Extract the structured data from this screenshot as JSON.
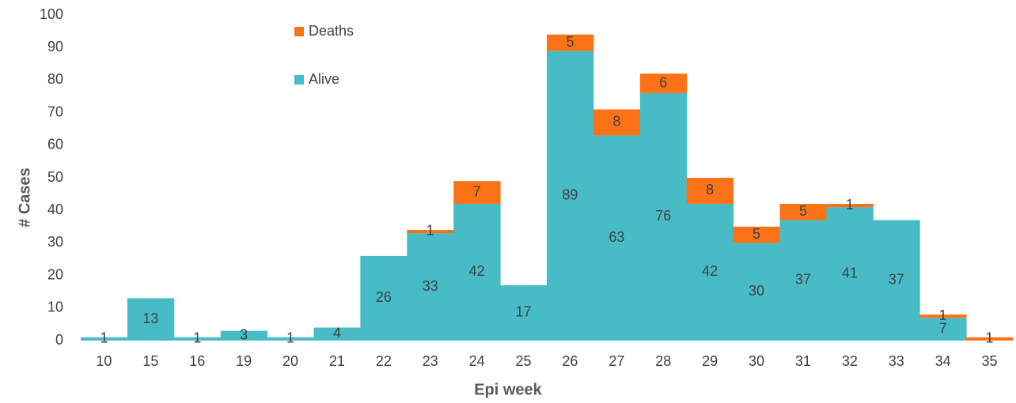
{
  "chart_data": {
    "type": "stacked_bar",
    "x_label": "Epi week",
    "y_label": "# Cases",
    "categories": [
      "10",
      "15",
      "16",
      "19",
      "20",
      "21",
      "22",
      "23",
      "24",
      "25",
      "26",
      "27",
      "28",
      "29",
      "30",
      "31",
      "32",
      "33",
      "34",
      "35"
    ],
    "series": [
      {
        "name": "Alive",
        "color": "#47bcc6",
        "values": [
          1,
          13,
          1,
          3,
          1,
          4,
          26,
          33,
          42,
          17,
          89,
          63,
          76,
          42,
          30,
          37,
          41,
          37,
          7,
          0
        ]
      },
      {
        "name": "Deaths",
        "color": "#fb7316",
        "values": [
          0,
          0,
          0,
          0,
          0,
          0,
          0,
          1,
          7,
          0,
          5,
          8,
          6,
          8,
          5,
          5,
          1,
          0,
          1,
          1
        ]
      }
    ],
    "ylim": [
      0,
      100
    ],
    "yticks": [
      0,
      10,
      20,
      30,
      40,
      50,
      60,
      70,
      80,
      90,
      100
    ],
    "grid": false,
    "legend": "top"
  }
}
